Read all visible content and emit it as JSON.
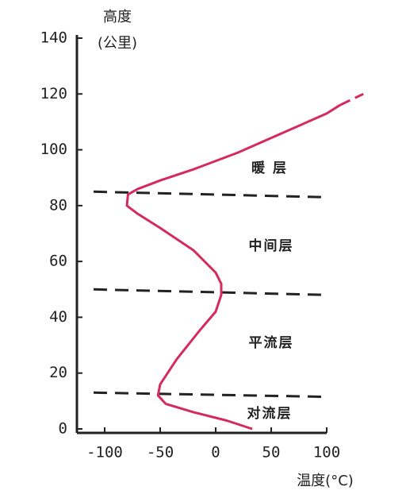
{
  "chart_data": {
    "type": "line",
    "ylabel_line1": "高度",
    "ylabel_line2": "(公里)",
    "xlabel": "温度(°C)",
    "xlim": [
      -125,
      100
    ],
    "ylim": [
      0,
      140
    ],
    "xticks": [
      -100,
      -50,
      0,
      50,
      100
    ],
    "yticks": [
      0,
      20,
      40,
      60,
      80,
      100,
      120,
      140
    ],
    "series": [
      {
        "color": "#d42a5c",
        "dashed": false,
        "x": [
          33,
          10,
          -20,
          -45,
          -52,
          -50,
          -35,
          -15,
          0,
          5,
          5,
          0,
          -20,
          -50,
          -70,
          -80,
          -79,
          -70,
          -50,
          -20,
          20,
          60,
          100,
          112
        ],
        "values": [
          0,
          3,
          6,
          9,
          12,
          16,
          25,
          35,
          42,
          48,
          52,
          56,
          64,
          72,
          77,
          80,
          84,
          86,
          89,
          93,
          99,
          106,
          113,
          116
        ]
      },
      {
        "color": "#d42a5c",
        "dashed": true,
        "x": [
          112,
          133
        ],
        "values": [
          116,
          120
        ]
      }
    ],
    "boundaries": [
      {
        "x": [
          -110,
          100
        ],
        "values": [
          13,
          11.5
        ]
      },
      {
        "x": [
          -110,
          100
        ],
        "values": [
          50,
          48
        ]
      },
      {
        "x": [
          -110,
          100
        ],
        "values": [
          85,
          83
        ]
      }
    ],
    "annotations": [
      "对流层",
      "平流层",
      "中间层",
      "暖 层"
    ]
  }
}
